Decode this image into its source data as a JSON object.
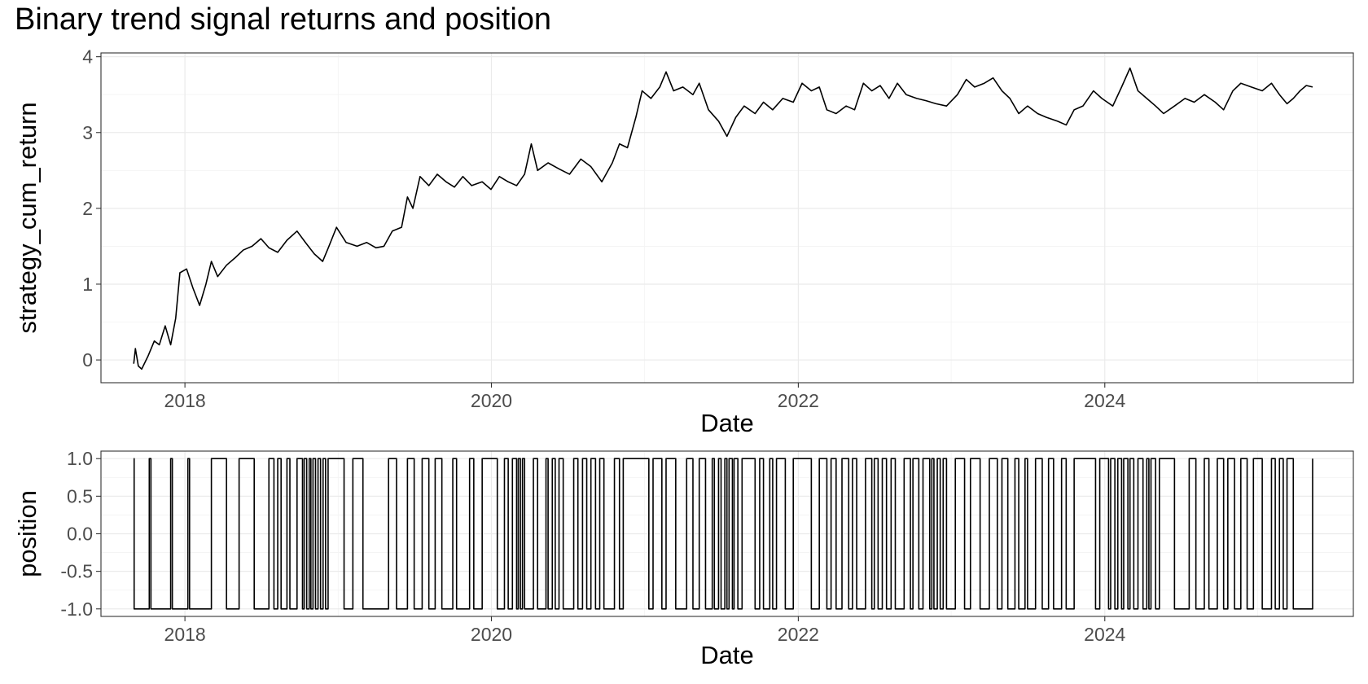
{
  "title": "Binary trend signal returns and position",
  "chart_data": [
    {
      "type": "line",
      "name": "cumulative-return-panel",
      "xlabel": "Date",
      "ylabel": "strategy_cum_return",
      "xlim": [
        "2017-06-15",
        "2025-08-15"
      ],
      "ylim": [
        -0.3,
        4.05
      ],
      "x_ticks": [
        {
          "value": "2018-01-01",
          "label": "2018"
        },
        {
          "value": "2020-01-01",
          "label": "2020"
        },
        {
          "value": "2022-01-01",
          "label": "2022"
        },
        {
          "value": "2024-01-01",
          "label": "2024"
        }
      ],
      "y_ticks": [
        {
          "value": 0,
          "label": "0"
        },
        {
          "value": 1,
          "label": "1"
        },
        {
          "value": 2,
          "label": "2"
        },
        {
          "value": 3,
          "label": "3"
        },
        {
          "value": 4,
          "label": "4"
        }
      ],
      "grid": true,
      "series": [
        {
          "color": "#000000",
          "points": [
            [
              "2017-09-01",
              -0.05
            ],
            [
              "2017-09-05",
              0.15
            ],
            [
              "2017-09-12",
              -0.08
            ],
            [
              "2017-09-20",
              -0.12
            ],
            [
              "2017-10-05",
              0.05
            ],
            [
              "2017-10-20",
              0.25
            ],
            [
              "2017-11-01",
              0.2
            ],
            [
              "2017-11-15",
              0.45
            ],
            [
              "2017-11-28",
              0.2
            ],
            [
              "2017-12-10",
              0.55
            ],
            [
              "2017-12-20",
              1.15
            ],
            [
              "2018-01-05",
              1.2
            ],
            [
              "2018-01-20",
              0.95
            ],
            [
              "2018-02-05",
              0.72
            ],
            [
              "2018-02-20",
              1.0
            ],
            [
              "2018-03-05",
              1.3
            ],
            [
              "2018-03-20",
              1.1
            ],
            [
              "2018-04-10",
              1.25
            ],
            [
              "2018-05-01",
              1.35
            ],
            [
              "2018-05-20",
              1.45
            ],
            [
              "2018-06-10",
              1.5
            ],
            [
              "2018-07-01",
              1.6
            ],
            [
              "2018-07-20",
              1.48
            ],
            [
              "2018-08-10",
              1.42
            ],
            [
              "2018-09-01",
              1.58
            ],
            [
              "2018-09-25",
              1.7
            ],
            [
              "2018-10-15",
              1.55
            ],
            [
              "2018-11-05",
              1.4
            ],
            [
              "2018-11-25",
              1.3
            ],
            [
              "2018-12-10",
              1.5
            ],
            [
              "2018-12-28",
              1.75
            ],
            [
              "2019-01-20",
              1.55
            ],
            [
              "2019-02-15",
              1.5
            ],
            [
              "2019-03-10",
              1.55
            ],
            [
              "2019-04-01",
              1.48
            ],
            [
              "2019-04-20",
              1.5
            ],
            [
              "2019-05-10",
              1.7
            ],
            [
              "2019-06-01",
              1.75
            ],
            [
              "2019-06-15",
              2.15
            ],
            [
              "2019-06-28",
              2.0
            ],
            [
              "2019-07-15",
              2.42
            ],
            [
              "2019-08-05",
              2.3
            ],
            [
              "2019-08-25",
              2.45
            ],
            [
              "2019-09-15",
              2.35
            ],
            [
              "2019-10-05",
              2.28
            ],
            [
              "2019-10-25",
              2.42
            ],
            [
              "2019-11-15",
              2.3
            ],
            [
              "2019-12-10",
              2.35
            ],
            [
              "2019-12-31",
              2.25
            ],
            [
              "2020-01-20",
              2.42
            ],
            [
              "2020-02-10",
              2.35
            ],
            [
              "2020-03-01",
              2.3
            ],
            [
              "2020-03-20",
              2.45
            ],
            [
              "2020-04-05",
              2.85
            ],
            [
              "2020-04-20",
              2.5
            ],
            [
              "2020-05-15",
              2.6
            ],
            [
              "2020-06-10",
              2.52
            ],
            [
              "2020-07-05",
              2.45
            ],
            [
              "2020-08-01",
              2.65
            ],
            [
              "2020-08-25",
              2.55
            ],
            [
              "2020-09-20",
              2.35
            ],
            [
              "2020-10-15",
              2.6
            ],
            [
              "2020-11-01",
              2.85
            ],
            [
              "2020-11-20",
              2.8
            ],
            [
              "2020-12-10",
              3.2
            ],
            [
              "2020-12-25",
              3.55
            ],
            [
              "2021-01-15",
              3.45
            ],
            [
              "2021-02-05",
              3.6
            ],
            [
              "2021-02-20",
              3.8
            ],
            [
              "2021-03-10",
              3.55
            ],
            [
              "2021-04-01",
              3.6
            ],
            [
              "2021-04-25",
              3.5
            ],
            [
              "2021-05-10",
              3.65
            ],
            [
              "2021-06-01",
              3.3
            ],
            [
              "2021-06-25",
              3.15
            ],
            [
              "2021-07-15",
              2.95
            ],
            [
              "2021-08-05",
              3.2
            ],
            [
              "2021-08-25",
              3.35
            ],
            [
              "2021-09-20",
              3.25
            ],
            [
              "2021-10-10",
              3.4
            ],
            [
              "2021-11-01",
              3.3
            ],
            [
              "2021-11-25",
              3.45
            ],
            [
              "2021-12-20",
              3.4
            ],
            [
              "2022-01-10",
              3.65
            ],
            [
              "2022-02-01",
              3.55
            ],
            [
              "2022-02-20",
              3.6
            ],
            [
              "2022-03-10",
              3.3
            ],
            [
              "2022-04-01",
              3.25
            ],
            [
              "2022-04-25",
              3.35
            ],
            [
              "2022-05-15",
              3.3
            ],
            [
              "2022-06-05",
              3.65
            ],
            [
              "2022-06-25",
              3.55
            ],
            [
              "2022-07-15",
              3.62
            ],
            [
              "2022-08-05",
              3.45
            ],
            [
              "2022-08-25",
              3.65
            ],
            [
              "2022-09-15",
              3.5
            ],
            [
              "2022-10-10",
              3.45
            ],
            [
              "2022-11-01",
              3.42
            ],
            [
              "2022-11-25",
              3.38
            ],
            [
              "2022-12-20",
              3.35
            ],
            [
              "2023-01-15",
              3.5
            ],
            [
              "2023-02-05",
              3.7
            ],
            [
              "2023-02-25",
              3.6
            ],
            [
              "2023-03-20",
              3.65
            ],
            [
              "2023-04-10",
              3.72
            ],
            [
              "2023-05-01",
              3.55
            ],
            [
              "2023-05-20",
              3.45
            ],
            [
              "2023-06-10",
              3.25
            ],
            [
              "2023-07-01",
              3.35
            ],
            [
              "2023-07-25",
              3.25
            ],
            [
              "2023-08-15",
              3.2
            ],
            [
              "2023-09-10",
              3.15
            ],
            [
              "2023-10-01",
              3.1
            ],
            [
              "2023-10-20",
              3.3
            ],
            [
              "2023-11-10",
              3.35
            ],
            [
              "2023-12-05",
              3.55
            ],
            [
              "2023-12-25",
              3.45
            ],
            [
              "2024-01-20",
              3.35
            ],
            [
              "2024-02-10",
              3.6
            ],
            [
              "2024-03-01",
              3.85
            ],
            [
              "2024-03-20",
              3.55
            ],
            [
              "2024-04-10",
              3.45
            ],
            [
              "2024-05-01",
              3.35
            ],
            [
              "2024-05-20",
              3.25
            ],
            [
              "2024-06-15",
              3.35
            ],
            [
              "2024-07-10",
              3.45
            ],
            [
              "2024-08-01",
              3.4
            ],
            [
              "2024-08-25",
              3.5
            ],
            [
              "2024-09-20",
              3.4
            ],
            [
              "2024-10-10",
              3.3
            ],
            [
              "2024-11-01",
              3.55
            ],
            [
              "2024-11-20",
              3.65
            ],
            [
              "2024-12-15",
              3.6
            ],
            [
              "2025-01-10",
              3.55
            ],
            [
              "2025-02-01",
              3.65
            ],
            [
              "2025-02-20",
              3.5
            ],
            [
              "2025-03-10",
              3.38
            ],
            [
              "2025-03-25",
              3.45
            ],
            [
              "2025-04-10",
              3.55
            ],
            [
              "2025-04-25",
              3.62
            ],
            [
              "2025-05-10",
              3.6
            ]
          ]
        }
      ]
    },
    {
      "type": "line",
      "name": "position-panel",
      "xlabel": "Date",
      "ylabel": "position",
      "xlim": [
        "2017-06-15",
        "2025-08-15"
      ],
      "ylim": [
        -1.1,
        1.1
      ],
      "x_ticks": [
        {
          "value": "2018-01-01",
          "label": "2018"
        },
        {
          "value": "2020-01-01",
          "label": "2020"
        },
        {
          "value": "2022-01-01",
          "label": "2022"
        },
        {
          "value": "2024-01-01",
          "label": "2024"
        }
      ],
      "y_ticks": [
        {
          "value": 1.0,
          "label": "1.0"
        },
        {
          "value": 0.5,
          "label": "0.5"
        },
        {
          "value": 0.0,
          "label": "0.0"
        },
        {
          "value": -0.5,
          "label": "-0.5"
        },
        {
          "value": -1.0,
          "label": "-1.0"
        }
      ],
      "grid": true,
      "step": true,
      "series": [
        {
          "color": "#000000",
          "start": {
            "date": "2017-09-01",
            "value": 1
          },
          "switch_dates": [
            "2017-09-02",
            "2017-10-08",
            "2017-10-12",
            "2017-11-28",
            "2017-12-02",
            "2018-01-08",
            "2018-01-12",
            "2018-03-05",
            "2018-04-10",
            "2018-05-10",
            "2018-06-15",
            "2018-07-20",
            "2018-08-01",
            "2018-08-10",
            "2018-08-18",
            "2018-09-01",
            "2018-09-08",
            "2018-09-25",
            "2018-10-08",
            "2018-10-12",
            "2018-10-18",
            "2018-10-24",
            "2018-10-28",
            "2018-11-02",
            "2018-11-08",
            "2018-11-14",
            "2018-11-20",
            "2018-11-26",
            "2018-12-02",
            "2018-12-08",
            "2019-01-15",
            "2019-02-05",
            "2019-03-01",
            "2019-05-01",
            "2019-05-20",
            "2019-06-15",
            "2019-07-01",
            "2019-07-20",
            "2019-08-05",
            "2019-08-20",
            "2019-09-05",
            "2019-10-01",
            "2019-10-10",
            "2019-11-10",
            "2019-11-20",
            "2019-12-10",
            "2020-01-15",
            "2020-02-01",
            "2020-02-10",
            "2020-02-20",
            "2020-03-01",
            "2020-03-05",
            "2020-03-10",
            "2020-03-15",
            "2020-03-20",
            "2020-04-10",
            "2020-04-20",
            "2020-05-10",
            "2020-05-15",
            "2020-05-25",
            "2020-06-01",
            "2020-06-10",
            "2020-06-20",
            "2020-07-15",
            "2020-07-25",
            "2020-08-05",
            "2020-08-15",
            "2020-08-25",
            "2020-09-05",
            "2020-09-15",
            "2020-09-25",
            "2020-10-20",
            "2020-11-01",
            "2020-11-10",
            "2021-01-10",
            "2021-01-20",
            "2021-02-10",
            "2021-02-20",
            "2021-03-15",
            "2021-04-10",
            "2021-04-25",
            "2021-05-10",
            "2021-05-25",
            "2021-06-10",
            "2021-06-15",
            "2021-06-25",
            "2021-07-01",
            "2021-07-10",
            "2021-07-15",
            "2021-07-20",
            "2021-07-28",
            "2021-08-01",
            "2021-08-10",
            "2021-08-20",
            "2021-09-20",
            "2021-10-01",
            "2021-10-10",
            "2021-10-25",
            "2021-11-01",
            "2021-11-10",
            "2021-12-01",
            "2021-12-20",
            "2022-02-01",
            "2022-02-20",
            "2022-03-10",
            "2022-03-20",
            "2022-04-01",
            "2022-04-15",
            "2022-05-01",
            "2022-05-10",
            "2022-05-20",
            "2022-06-10",
            "2022-06-25",
            "2022-07-01",
            "2022-07-10",
            "2022-07-20",
            "2022-07-30",
            "2022-08-10",
            "2022-08-20",
            "2022-09-10",
            "2022-09-25",
            "2022-10-01",
            "2022-10-15",
            "2022-10-25",
            "2022-11-10",
            "2022-11-15",
            "2022-11-20",
            "2022-11-28",
            "2022-12-05",
            "2022-12-12",
            "2022-12-20",
            "2023-01-10",
            "2023-02-01",
            "2023-02-15",
            "2023-03-10",
            "2023-04-01",
            "2023-04-20",
            "2023-05-01",
            "2023-05-15",
            "2023-06-01",
            "2023-06-10",
            "2023-06-25",
            "2023-07-01",
            "2023-07-20",
            "2023-08-05",
            "2023-08-20",
            "2023-09-01",
            "2023-09-20",
            "2023-10-01",
            "2023-10-20",
            "2023-12-10",
            "2023-12-20",
            "2024-01-10",
            "2024-01-15",
            "2024-01-25",
            "2024-02-01",
            "2024-02-10",
            "2024-02-15",
            "2024-02-25",
            "2024-03-01",
            "2024-03-10",
            "2024-03-20",
            "2024-04-01",
            "2024-04-10",
            "2024-04-15",
            "2024-04-20",
            "2024-05-01",
            "2024-05-10",
            "2024-06-15",
            "2024-07-20",
            "2024-08-05",
            "2024-08-25",
            "2024-09-05",
            "2024-09-25",
            "2024-10-10",
            "2024-10-20",
            "2024-11-05",
            "2024-11-20",
            "2024-12-05",
            "2024-12-20",
            "2025-01-10",
            "2025-02-01",
            "2025-02-10",
            "2025-02-20",
            "2025-03-01",
            "2025-03-10",
            "2025-03-25",
            "2025-05-10"
          ],
          "end": "2025-05-10"
        }
      ]
    }
  ]
}
